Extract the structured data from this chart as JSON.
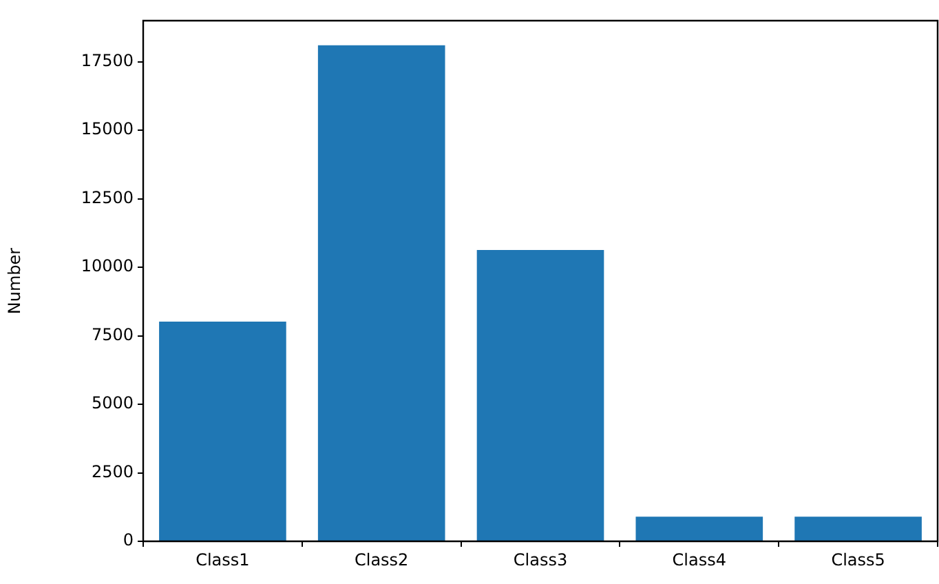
{
  "chart_data": {
    "type": "bar",
    "ylabel": "Number",
    "categories": [
      "Class1",
      "Class2",
      "Class3",
      "Class4",
      "Class5"
    ],
    "values": [
      8020,
      18100,
      10630,
      900,
      900
    ],
    "color": "#1f77b4",
    "ylim": [
      0,
      19000
    ],
    "yticks": [
      0,
      2500,
      5000,
      7500,
      10000,
      12500,
      15000,
      17500
    ]
  }
}
